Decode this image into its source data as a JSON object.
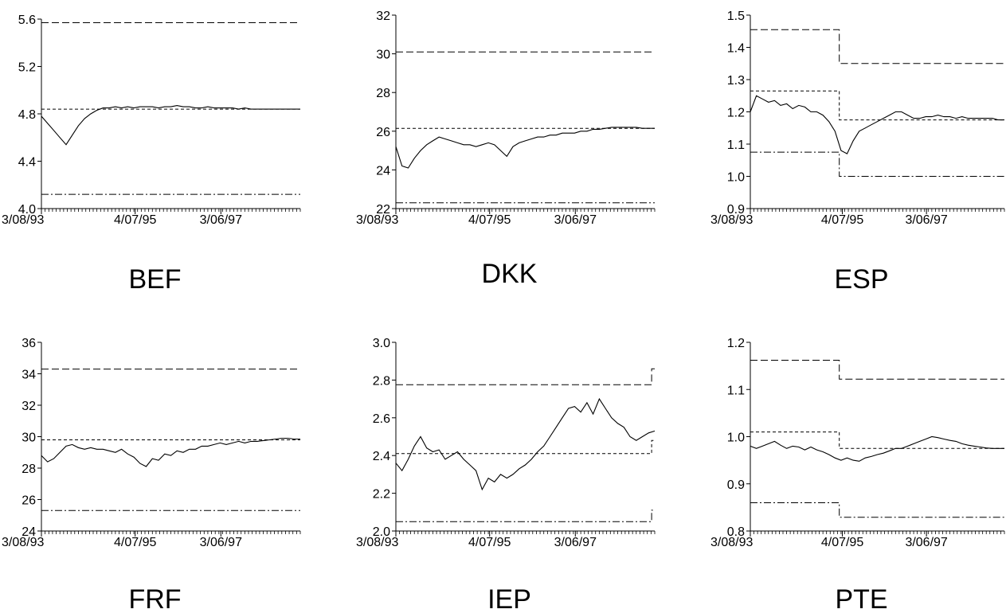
{
  "chart_data": [
    {
      "type": "line",
      "title": "BEF",
      "x_ticks": [
        "3/08/93",
        "4/07/95",
        "3/06/97"
      ],
      "ylim": [
        4.0,
        5.6
      ],
      "y_ticks": [
        "4.0",
        "4.4",
        "4.8",
        "5.2",
        "5.6"
      ],
      "bands": [
        {
          "style": "long-dash",
          "segments": [
            {
              "from": "3/08/93",
              "to": "end",
              "y": 5.57
            }
          ]
        },
        {
          "style": "short-dash",
          "segments": [
            {
              "from": "3/08/93",
              "to": "end",
              "y": 4.84
            }
          ]
        },
        {
          "style": "dash-dot",
          "segments": [
            {
              "from": "3/08/93",
              "to": "end",
              "y": 4.12
            }
          ]
        }
      ],
      "series": [
        {
          "values": [
            4.78,
            4.72,
            4.66,
            4.6,
            4.54,
            4.62,
            4.7,
            4.76,
            4.8,
            4.83,
            4.85,
            4.85,
            4.86,
            4.85,
            4.86,
            4.85,
            4.86,
            4.86,
            4.86,
            4.85,
            4.86,
            4.86,
            4.87,
            4.86,
            4.86,
            4.85,
            4.85,
            4.86,
            4.85,
            4.85,
            4.85,
            4.85,
            4.84,
            4.85,
            4.84,
            4.84,
            4.84,
            4.84,
            4.84,
            4.84,
            4.84,
            4.84,
            4.84
          ]
        }
      ]
    },
    {
      "type": "line",
      "title": "DKK",
      "x_ticks": [
        "3/08/93",
        "4/07/95",
        "3/06/97"
      ],
      "ylim": [
        22,
        32
      ],
      "y_ticks": [
        "22",
        "24",
        "26",
        "28",
        "30",
        "32"
      ],
      "bands": [
        {
          "style": "long-dash",
          "segments": [
            {
              "from": "3/08/93",
              "to": "end",
              "y": 30.1
            }
          ]
        },
        {
          "style": "short-dash",
          "segments": [
            {
              "from": "3/08/93",
              "to": "end",
              "y": 26.15
            }
          ]
        },
        {
          "style": "dash-dot",
          "segments": [
            {
              "from": "3/08/93",
              "to": "end",
              "y": 22.3
            }
          ]
        }
      ],
      "series": [
        {
          "values": [
            25.2,
            24.2,
            24.1,
            24.6,
            25.0,
            25.3,
            25.5,
            25.7,
            25.6,
            25.5,
            25.4,
            25.3,
            25.3,
            25.2,
            25.3,
            25.4,
            25.3,
            25.0,
            24.7,
            25.2,
            25.4,
            25.5,
            25.6,
            25.7,
            25.7,
            25.8,
            25.8,
            25.9,
            25.9,
            25.9,
            26.0,
            26.0,
            26.1,
            26.1,
            26.15,
            26.2,
            26.2,
            26.2,
            26.2,
            26.2,
            26.15,
            26.15,
            26.15
          ]
        }
      ]
    },
    {
      "type": "line",
      "title": "ESP",
      "x_ticks": [
        "3/08/93",
        "4/07/95",
        "3/06/97"
      ],
      "ylim": [
        0.9,
        1.5
      ],
      "y_ticks": [
        "0.9",
        "1.0",
        "1.1",
        "1.2",
        "1.3",
        "1.4",
        "1.5"
      ],
      "bands": [
        {
          "style": "long-dash",
          "segments": [
            {
              "from": "3/08/93",
              "to": "3/95",
              "y": 1.455
            },
            {
              "from": "3/95",
              "to": "end",
              "y": 1.35
            }
          ]
        },
        {
          "style": "short-dash",
          "segments": [
            {
              "from": "3/08/93",
              "to": "3/95",
              "y": 1.265
            },
            {
              "from": "3/95",
              "to": "end",
              "y": 1.175
            }
          ]
        },
        {
          "style": "dash-dot",
          "segments": [
            {
              "from": "3/08/93",
              "to": "3/95",
              "y": 1.075
            },
            {
              "from": "3/95",
              "to": "end",
              "y": 1.0
            }
          ]
        }
      ],
      "series": [
        {
          "values": [
            1.2,
            1.25,
            1.24,
            1.23,
            1.235,
            1.22,
            1.225,
            1.21,
            1.22,
            1.215,
            1.2,
            1.2,
            1.19,
            1.17,
            1.14,
            1.08,
            1.07,
            1.11,
            1.14,
            1.15,
            1.16,
            1.17,
            1.18,
            1.19,
            1.2,
            1.2,
            1.19,
            1.18,
            1.18,
            1.185,
            1.185,
            1.19,
            1.185,
            1.185,
            1.18,
            1.185,
            1.18,
            1.18,
            1.18,
            1.18,
            1.18,
            1.175,
            1.175
          ]
        }
      ]
    },
    {
      "type": "line",
      "title": "FRF",
      "x_ticks": [
        "3/08/93",
        "4/07/95",
        "3/06/97"
      ],
      "ylim": [
        24,
        36
      ],
      "y_ticks": [
        "24",
        "26",
        "28",
        "30",
        "32",
        "34",
        "36"
      ],
      "bands": [
        {
          "style": "long-dash",
          "segments": [
            {
              "from": "3/08/93",
              "to": "end",
              "y": 34.3
            }
          ]
        },
        {
          "style": "short-dash",
          "segments": [
            {
              "from": "3/08/93",
              "to": "end",
              "y": 29.8
            }
          ]
        },
        {
          "style": "dash-dot",
          "segments": [
            {
              "from": "3/08/93",
              "to": "end",
              "y": 25.3
            }
          ]
        }
      ],
      "series": [
        {
          "values": [
            28.8,
            28.4,
            28.6,
            29.0,
            29.4,
            29.5,
            29.3,
            29.2,
            29.3,
            29.2,
            29.2,
            29.1,
            29.0,
            29.2,
            28.9,
            28.7,
            28.3,
            28.1,
            28.6,
            28.5,
            28.9,
            28.8,
            29.1,
            29.0,
            29.2,
            29.2,
            29.4,
            29.4,
            29.5,
            29.6,
            29.5,
            29.6,
            29.7,
            29.6,
            29.7,
            29.7,
            29.75,
            29.8,
            29.85,
            29.9,
            29.9,
            29.85,
            29.85
          ]
        }
      ]
    },
    {
      "type": "line",
      "title": "IEP",
      "x_ticks": [
        "3/08/93",
        "4/07/95",
        "3/06/97"
      ],
      "ylim": [
        2.0,
        3.0
      ],
      "y_ticks": [
        "2.0",
        "2.2",
        "2.4",
        "2.6",
        "2.8",
        "3.0"
      ],
      "bands": [
        {
          "style": "long-dash",
          "segments": [
            {
              "from": "3/08/93",
              "to": "12/98",
              "y": 2.775
            },
            {
              "from": "12/98",
              "to": "end",
              "y": 2.86
            }
          ]
        },
        {
          "style": "short-dash",
          "segments": [
            {
              "from": "3/08/93",
              "to": "12/98",
              "y": 2.41
            },
            {
              "from": "12/98",
              "to": "end",
              "y": 2.48
            }
          ]
        },
        {
          "style": "dash-dot",
          "segments": [
            {
              "from": "3/08/93",
              "to": "12/98",
              "y": 2.05
            },
            {
              "from": "12/98",
              "to": "end",
              "y": 2.11
            }
          ]
        }
      ],
      "series": [
        {
          "values": [
            2.36,
            2.32,
            2.38,
            2.45,
            2.5,
            2.44,
            2.42,
            2.43,
            2.38,
            2.4,
            2.42,
            2.38,
            2.35,
            2.32,
            2.22,
            2.28,
            2.26,
            2.3,
            2.28,
            2.3,
            2.33,
            2.35,
            2.38,
            2.42,
            2.45,
            2.5,
            2.55,
            2.6,
            2.65,
            2.66,
            2.63,
            2.68,
            2.62,
            2.7,
            2.65,
            2.6,
            2.57,
            2.55,
            2.5,
            2.48,
            2.5,
            2.52,
            2.53
          ]
        }
      ]
    },
    {
      "type": "line",
      "title": "PTE",
      "x_ticks": [
        "3/08/93",
        "4/07/95",
        "3/06/97"
      ],
      "ylim": [
        0.8,
        1.2
      ],
      "y_ticks": [
        "0.8",
        "0.9",
        "1.0",
        "1.1",
        "1.2"
      ],
      "bands": [
        {
          "style": "long-dash",
          "segments": [
            {
              "from": "3/08/93",
              "to": "3/95",
              "y": 1.162
            },
            {
              "from": "3/95",
              "to": "end",
              "y": 1.122
            }
          ]
        },
        {
          "style": "short-dash",
          "segments": [
            {
              "from": "3/08/93",
              "to": "3/95",
              "y": 1.01
            },
            {
              "from": "3/95",
              "to": "end",
              "y": 0.975
            }
          ]
        },
        {
          "style": "dash-dot",
          "segments": [
            {
              "from": "3/08/93",
              "to": "3/95",
              "y": 0.86
            },
            {
              "from": "3/95",
              "to": "end",
              "y": 0.829
            }
          ]
        }
      ],
      "series": [
        {
          "values": [
            0.98,
            0.975,
            0.98,
            0.985,
            0.99,
            0.982,
            0.975,
            0.98,
            0.978,
            0.972,
            0.978,
            0.972,
            0.968,
            0.962,
            0.955,
            0.95,
            0.955,
            0.95,
            0.948,
            0.955,
            0.958,
            0.962,
            0.965,
            0.97,
            0.975,
            0.975,
            0.98,
            0.985,
            0.99,
            0.995,
            1.0,
            0.998,
            0.995,
            0.992,
            0.99,
            0.985,
            0.982,
            0.98,
            0.978,
            0.976,
            0.975,
            0.975,
            0.975
          ]
        }
      ]
    }
  ]
}
